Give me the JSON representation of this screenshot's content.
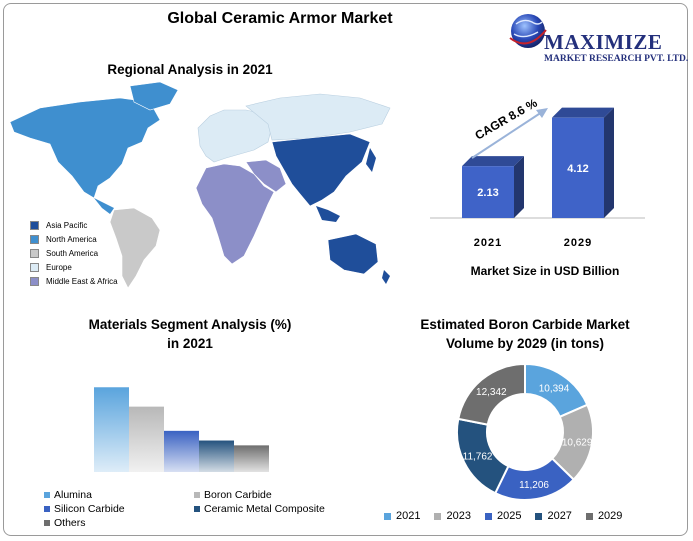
{
  "title": "Global Ceramic Armor Market",
  "logo": {
    "brand": "MAXIMIZE",
    "sub": "MARKET RESEARCH PVT. LTD."
  },
  "regional": {
    "title": "Regional Analysis in 2021",
    "legend": [
      {
        "label": "Asia Pacific",
        "color": "#1f4e9a"
      },
      {
        "label": "North America",
        "color": "#3f8fcf"
      },
      {
        "label": "South America",
        "color": "#c9c9c9"
      },
      {
        "label": "Europe",
        "color": "#dcebf5"
      },
      {
        "label": "Middle East & Africa",
        "color": "#8c8fc8"
      }
    ]
  },
  "chart_data": [
    {
      "type": "bar",
      "categories": [
        "2021",
        "2029"
      ],
      "values": [
        2.13,
        4.12
      ],
      "data_labels": [
        "2.13",
        "4.12"
      ],
      "annotation": "CAGR 8.6 %",
      "xlabel": "Market Size in USD Billion",
      "ylim": [
        0,
        4.6
      ],
      "color": "#3f63c8"
    },
    {
      "type": "bar",
      "title": "Materials Segment Analysis (%) in 2021",
      "title_lines": [
        "Materials Segment Analysis (%)",
        "in 2021"
      ],
      "categories": [
        "Alumina",
        "Boron Carbide",
        "Silicon Carbide",
        "Ceramic Metal Composite",
        "Others"
      ],
      "values": [
        35,
        27,
        17,
        13,
        11
      ],
      "ylim": [
        0,
        38
      ],
      "colors": [
        "#5aa4dd",
        "#b8b8b8",
        "#3a62c2",
        "#24527e",
        "#6e6e6e"
      ],
      "grid": false
    },
    {
      "type": "pie",
      "title": "Estimated Boron Carbide Market Volume by 2029 (in tons)",
      "title_lines": [
        "Estimated Boron Carbide Market",
        "Volume by 2029 (in tons)"
      ],
      "categories": [
        "2021",
        "2023",
        "2025",
        "2027",
        "2029"
      ],
      "values": [
        10394,
        10629,
        11206,
        11762,
        12342
      ],
      "data_labels": [
        "10,394",
        "10,629",
        "11,206",
        "11,762",
        "12,342"
      ],
      "colors": [
        "#5aa4dd",
        "#b0b0b0",
        "#3a62c2",
        "#24527e",
        "#6e6e6e"
      ],
      "legend": "bottom"
    }
  ]
}
